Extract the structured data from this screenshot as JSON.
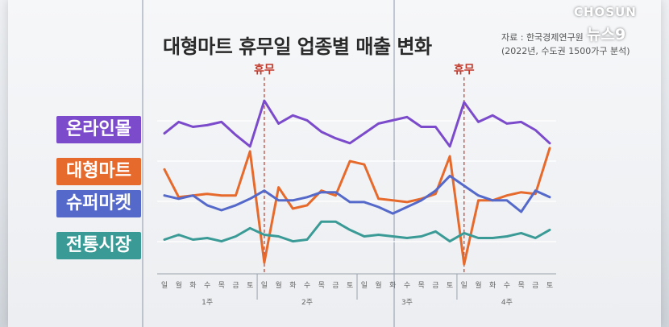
{
  "branding": {
    "logo_top": "CHOSUN",
    "logo_bottom": "뉴스9"
  },
  "source_note": {
    "line1": "자료 : 한국경제연구원",
    "line2": "(2022년, 수도권 1500가구 분석)"
  },
  "colors": {
    "online": "#7b4bcb",
    "mart": "#e66a2c",
    "super": "#5469c9",
    "traditional": "#3a9a96",
    "holiday_line": "#c0392b"
  },
  "chart_data": {
    "type": "line",
    "title": "대형마트 휴무일 업종별 매출 변화",
    "x": [
      "일",
      "월",
      "화",
      "수",
      "목",
      "금",
      "토",
      "일",
      "월",
      "화",
      "수",
      "목",
      "금",
      "토",
      "일",
      "월",
      "화",
      "수",
      "목",
      "금",
      "토",
      "일",
      "월",
      "화",
      "수",
      "목",
      "금",
      "토"
    ],
    "week_labels": [
      "1주",
      "2주",
      "3주",
      "4주"
    ],
    "annotations": [
      {
        "text": "휴무",
        "x_index": 8
      },
      {
        "text": "휴무",
        "x_index": 22
      }
    ],
    "series": [
      {
        "name": "온라인몰",
        "color": "#7b4bcb",
        "values": [
          60,
          67,
          64,
          65,
          67,
          59,
          52,
          80,
          66,
          71,
          68,
          61,
          57,
          54,
          60,
          66,
          68,
          70,
          64,
          64,
          52,
          79,
          67,
          71,
          66,
          67,
          62,
          54
        ]
      },
      {
        "name": "대형마트",
        "color": "#e66a2c",
        "values": [
          38,
          21,
          22,
          23,
          22,
          22,
          49,
          -19,
          27,
          14,
          16,
          25,
          22,
          43,
          41,
          20,
          19,
          18,
          20,
          23,
          46,
          -20,
          19,
          19,
          22,
          24,
          23,
          51
        ]
      },
      {
        "name": "슈퍼마켓",
        "color": "#5469c9",
        "values": [
          22,
          20,
          22,
          16,
          13,
          16,
          20,
          25,
          19,
          19,
          21,
          24,
          24,
          18,
          18,
          15,
          11,
          15,
          19,
          25,
          34,
          28,
          22,
          19,
          19,
          12,
          25,
          21
        ]
      },
      {
        "name": "전통시장",
        "color": "#3a9a96",
        "values": [
          -5,
          -2,
          -5,
          -4,
          -6,
          -3,
          2,
          -2,
          -3,
          -6,
          -5,
          6,
          6,
          1,
          -3,
          -2,
          -3,
          -4,
          -3,
          0,
          -6,
          -1,
          -4,
          -4,
          -3,
          -1,
          -4,
          1
        ]
      }
    ]
  }
}
